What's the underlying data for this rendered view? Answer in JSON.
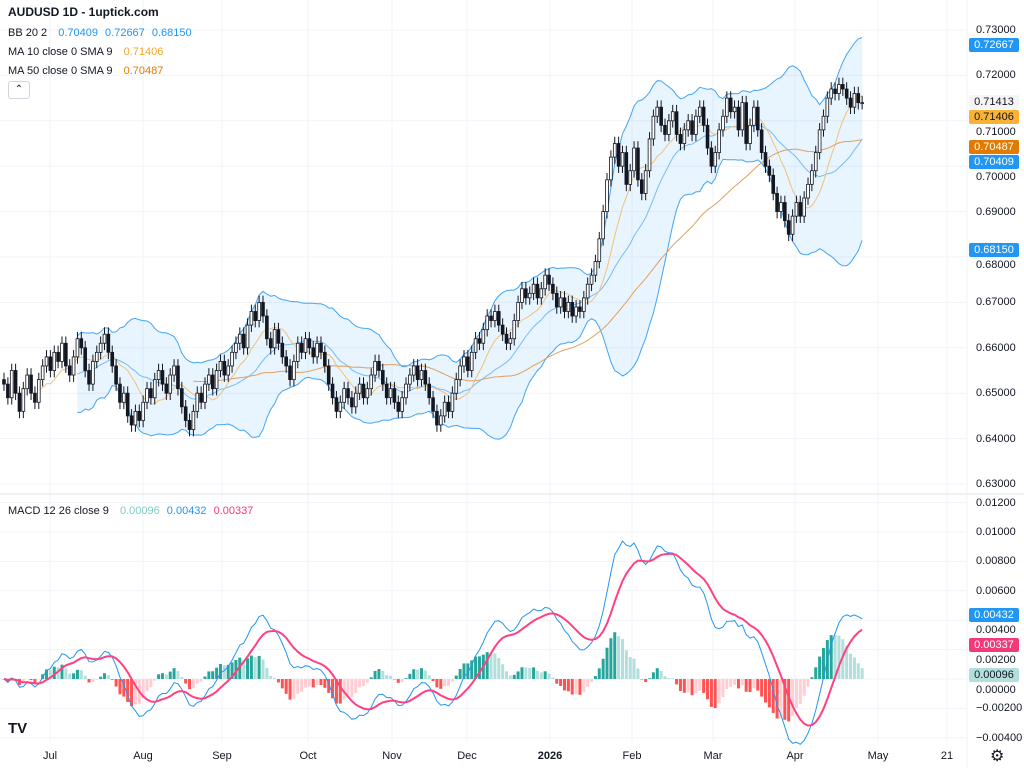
{
  "header": {
    "title": "AUDUSD 1D - 1uptick.com"
  },
  "legend": {
    "bb": {
      "label": "BB 20 2",
      "basis": "0.70409",
      "upper": "0.72667",
      "lower": "0.68150",
      "color": "#2196f3"
    },
    "ma10": {
      "label": "MA 10 close 0 SMA 9",
      "value": "0.71406",
      "color": "#f5a623"
    },
    "ma50": {
      "label": "MA 50 close 0 SMA 9",
      "value": "0.70487",
      "color": "#e07b00"
    },
    "macd": {
      "label": "MACD 12 26 close 9",
      "hist": "0.00096",
      "macd": "0.00432",
      "signal": "0.00337"
    }
  },
  "colors": {
    "up": "#ffffff",
    "down": "#131722",
    "bb_line": "#42a5f5",
    "bb_fill": "#2196f3",
    "ma10": "#f2c27a",
    "ma50": "#e0a060",
    "macd_line": "#2196f3",
    "signal_line": "#ff4081",
    "hist_up_strong": "#26a69a",
    "hist_up_weak": "#b2dfdb",
    "hist_down_strong": "#ff5252",
    "hist_down_weak": "#ffcdd2",
    "grid": "#f0f3fa"
  },
  "price_axis": {
    "ticks": [
      "0.73000",
      "0.72000",
      "0.71000",
      "0.70000",
      "0.69000",
      "0.68000",
      "0.67000",
      "0.66000",
      "0.65000",
      "0.64000",
      "0.63000"
    ]
  },
  "price_badges": [
    {
      "value": "0.72667",
      "bg": "#2196f3",
      "fg": "#ffffff"
    },
    {
      "value": "0.71413",
      "bg": "#f5f5f5",
      "fg": "#131722"
    },
    {
      "value": "0.71406",
      "bg": "#f9b233",
      "fg": "#131722"
    },
    {
      "value": "0.70487",
      "bg": "#e07b00",
      "fg": "#ffffff"
    },
    {
      "value": "0.70409",
      "bg": "#2196f3",
      "fg": "#ffffff"
    },
    {
      "value": "0.68150",
      "bg": "#2196f3",
      "fg": "#ffffff"
    }
  ],
  "macd_axis": {
    "ticks": [
      "0.01200",
      "0.01000",
      "0.00800",
      "0.00600",
      "0.00400",
      "0.00200",
      "0.00000",
      "−0.00200",
      "−0.00400"
    ]
  },
  "macd_badges": [
    {
      "value": "0.00432",
      "bg": "#2196f3",
      "fg": "#ffffff"
    },
    {
      "value": "0.00337",
      "bg": "#f23a7a",
      "fg": "#ffffff"
    },
    {
      "value": "0.00096",
      "bg": "#b2dfdb",
      "fg": "#131722"
    }
  ],
  "time_axis": {
    "labels": [
      "Jul",
      "Aug",
      "Sep",
      "Oct",
      "Nov",
      "Dec",
      "2026",
      "Feb",
      "Mar",
      "Apr",
      "May",
      "21"
    ]
  },
  "chart_data": {
    "type": "candlestick",
    "symbol": "AUDUSD",
    "interval": "1D",
    "ylim": [
      0.625,
      0.735
    ],
    "macd_ylim": [
      -0.0045,
      0.0125
    ],
    "grid": true,
    "indicators": [
      "BB 20 2",
      "MA 10",
      "MA 50",
      "MACD 12 26 9"
    ],
    "closes": [
      0.652,
      0.649,
      0.655,
      0.65,
      0.646,
      0.651,
      0.654,
      0.65,
      0.648,
      0.653,
      0.656,
      0.658,
      0.655,
      0.659,
      0.657,
      0.661,
      0.656,
      0.654,
      0.658,
      0.662,
      0.66,
      0.655,
      0.652,
      0.657,
      0.659,
      0.661,
      0.663,
      0.659,
      0.656,
      0.652,
      0.648,
      0.65,
      0.645,
      0.643,
      0.646,
      0.644,
      0.648,
      0.651,
      0.649,
      0.653,
      0.655,
      0.652,
      0.65,
      0.654,
      0.656,
      0.651,
      0.647,
      0.644,
      0.642,
      0.646,
      0.65,
      0.648,
      0.652,
      0.654,
      0.651,
      0.655,
      0.657,
      0.654,
      0.656,
      0.659,
      0.661,
      0.663,
      0.66,
      0.665,
      0.668,
      0.666,
      0.67,
      0.667,
      0.662,
      0.66,
      0.664,
      0.661,
      0.658,
      0.656,
      0.653,
      0.657,
      0.661,
      0.659,
      0.662,
      0.66,
      0.658,
      0.661,
      0.659,
      0.656,
      0.652,
      0.649,
      0.646,
      0.648,
      0.651,
      0.649,
      0.647,
      0.65,
      0.652,
      0.649,
      0.651,
      0.654,
      0.657,
      0.655,
      0.652,
      0.649,
      0.651,
      0.648,
      0.646,
      0.649,
      0.652,
      0.654,
      0.656,
      0.653,
      0.655,
      0.652,
      0.649,
      0.646,
      0.643,
      0.645,
      0.648,
      0.646,
      0.65,
      0.653,
      0.656,
      0.658,
      0.655,
      0.659,
      0.662,
      0.661,
      0.664,
      0.667,
      0.666,
      0.668,
      0.665,
      0.663,
      0.661,
      0.662,
      0.666,
      0.67,
      0.673,
      0.671,
      0.672,
      0.674,
      0.671,
      0.673,
      0.676,
      0.674,
      0.672,
      0.669,
      0.671,
      0.668,
      0.67,
      0.667,
      0.669,
      0.668,
      0.671,
      0.674,
      0.676,
      0.679,
      0.684,
      0.69,
      0.697,
      0.702,
      0.705,
      0.7,
      0.703,
      0.696,
      0.699,
      0.704,
      0.697,
      0.694,
      0.699,
      0.706,
      0.711,
      0.713,
      0.709,
      0.707,
      0.71,
      0.712,
      0.707,
      0.705,
      0.708,
      0.71,
      0.707,
      0.711,
      0.713,
      0.709,
      0.704,
      0.7,
      0.703,
      0.708,
      0.711,
      0.715,
      0.712,
      0.713,
      0.708,
      0.714,
      0.705,
      0.709,
      0.713,
      0.708,
      0.703,
      0.7,
      0.698,
      0.694,
      0.69,
      0.692,
      0.688,
      0.685,
      0.689,
      0.692,
      0.689,
      0.693,
      0.696,
      0.699,
      0.703,
      0.708,
      0.711,
      0.715,
      0.717,
      0.716,
      0.718,
      0.717,
      0.715,
      0.713,
      0.716,
      0.714,
      0.714
    ]
  }
}
